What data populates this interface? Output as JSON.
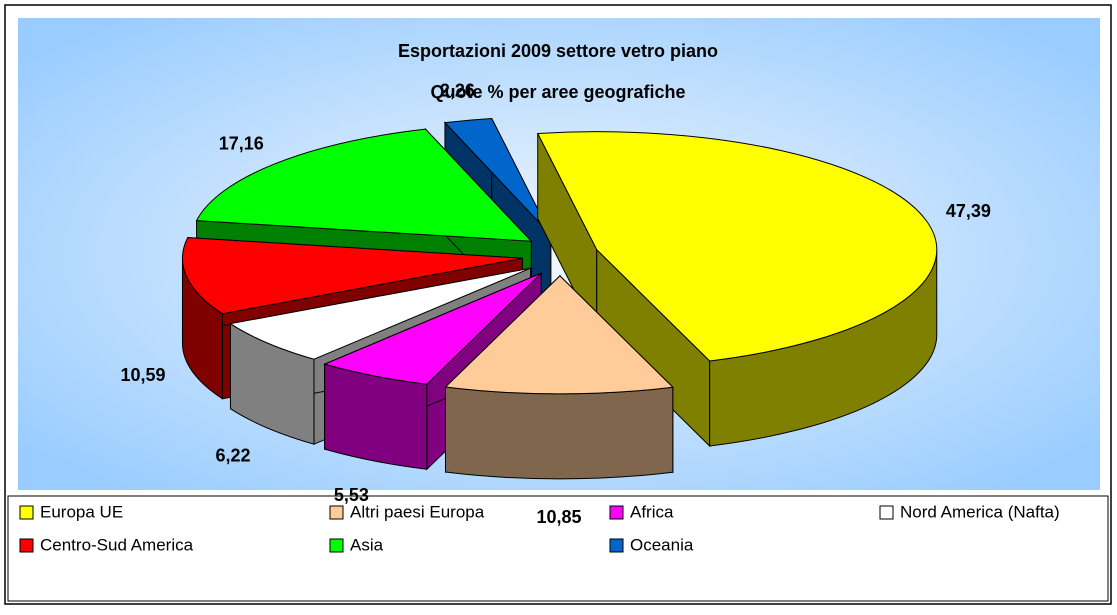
{
  "chart_data": {
    "type": "pie3d",
    "title": "Esportazioni 2009 settore vetro piano",
    "subtitle": "Quote % per aree geografiche",
    "categories": [
      "Europa UE",
      "Altri paesi Europa",
      "Africa",
      "Nord America (Nafta)",
      "Centro-Sud America",
      "Asia",
      "Oceania"
    ],
    "values": [
      47.39,
      10.85,
      5.53,
      6.22,
      10.59,
      17.16,
      2.26
    ],
    "value_labels": [
      "47,39",
      "10,85",
      "5,53",
      "6,22",
      "10,59",
      "17,16",
      "2,26"
    ],
    "colors": [
      "#ffff00",
      "#ffcc99",
      "#ff00ff",
      "#ffffff",
      "#ff0000",
      "#00ff00",
      "#0066cc"
    ],
    "legend": "bottom"
  }
}
